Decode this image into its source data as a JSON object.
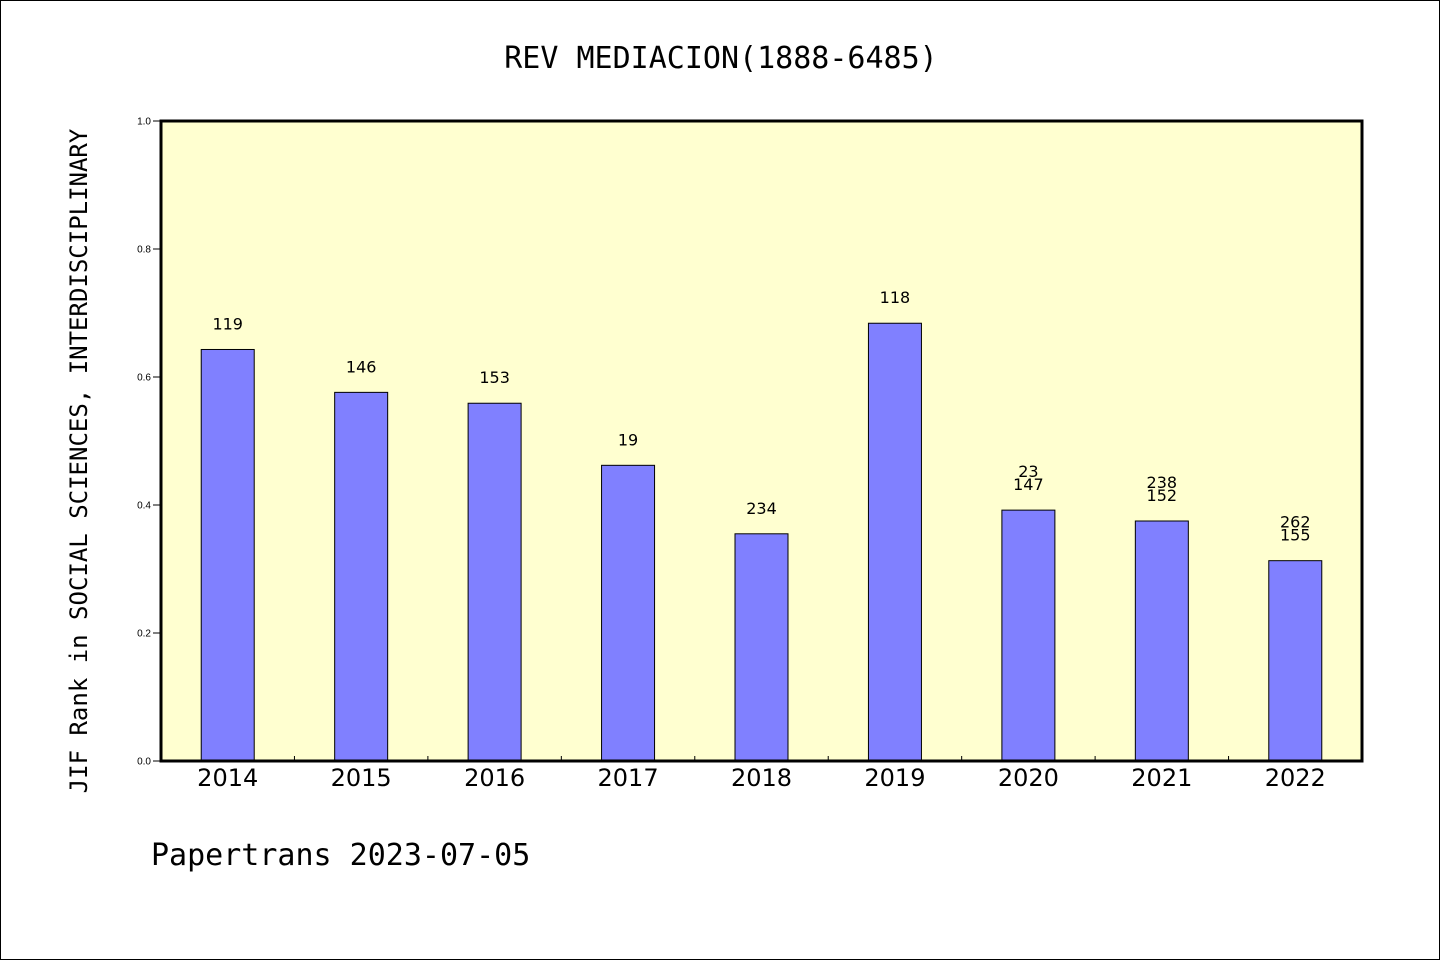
{
  "chart_data": {
    "type": "bar",
    "title": "REV MEDIACION(1888-6485)",
    "xlabel": "",
    "ylabel": "JIF Rank in SOCIAL SCIENCES, INTERDISCIPLINARY",
    "ylim": [
      0.0,
      1.0
    ],
    "yticks": [
      "0.0",
      "0.2",
      "0.4",
      "0.6",
      "0.8",
      "1.0"
    ],
    "categories": [
      "2014",
      "2015",
      "2016",
      "2017",
      "2018",
      "2019",
      "2020",
      "2021",
      "2022"
    ],
    "values": [
      0.643,
      0.576,
      0.559,
      0.462,
      0.355,
      0.684,
      0.392,
      0.375,
      0.313
    ],
    "bar_labels": [
      [
        "119"
      ],
      [
        "146"
      ],
      [
        "153"
      ],
      [
        "19"
      ],
      [
        "234"
      ],
      [
        "118"
      ],
      [
        "23",
        "147"
      ],
      [
        "238",
        "152"
      ],
      [
        "262",
        "155"
      ]
    ],
    "grid": false,
    "colors": {
      "plot_background": "#ffffd0",
      "bar_fill": "#8080ff",
      "bar_stroke": "#000000"
    }
  },
  "footer": {
    "text": "Papertrans 2023-07-05"
  }
}
